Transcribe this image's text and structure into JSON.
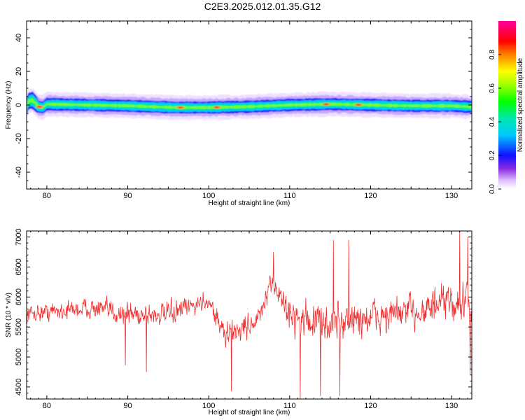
{
  "figure_title": "C2E3.2025.012.01.35.G12",
  "chart_data": [
    {
      "type": "heatmap",
      "xlabel": "Height of straight line (km)",
      "ylabel": "Frequency (Hz)",
      "xlim": [
        77.5,
        132.5
      ],
      "ylim": [
        -50,
        50
      ],
      "xticks": [
        80,
        90,
        100,
        110,
        120,
        130
      ],
      "yticks": [
        -40,
        -20,
        0,
        20,
        40
      ],
      "colorbar": {
        "label": "Normalized spectral amplitude",
        "range": [
          0,
          1
        ],
        "ticks": [
          "0.0",
          "0.2",
          "0.4",
          "0.6",
          "0.8"
        ],
        "colormap": "rainbow (white-violet-blue-cyan-green-yellow-orange-red-magenta)"
      },
      "center_frequency": [
        [
          77.6,
          2
        ],
        [
          78.2,
          3
        ],
        [
          79.0,
          -1
        ],
        [
          79.5,
          -1.5
        ],
        [
          80.0,
          0.5
        ],
        [
          85,
          0
        ],
        [
          90,
          -0.5
        ],
        [
          96,
          -1.5
        ],
        [
          100,
          -1.5
        ],
        [
          105,
          -1
        ],
        [
          110,
          0
        ],
        [
          115,
          0.5
        ],
        [
          120,
          0
        ],
        [
          125,
          -0.5
        ],
        [
          130,
          -0.5
        ],
        [
          132,
          -1
        ]
      ],
      "core_halfwidth_hz": 2,
      "hot_spots_km": [
        79.1,
        96.5,
        101.0,
        114.5,
        118.5
      ]
    },
    {
      "type": "line",
      "xlabel": "Height of straight line (km)",
      "ylabel": "SNR (10 * v/v)",
      "xlim": [
        77.5,
        132.5
      ],
      "ylim": [
        4300,
        7100
      ],
      "xticks": [
        80,
        90,
        100,
        110,
        120,
        130
      ],
      "yticks": [
        4500,
        5000,
        5500,
        6000,
        6500,
        7000
      ],
      "color": "#f03030",
      "envelope": [
        {
          "x": 77.5,
          "mean": 5720,
          "amp": 300
        },
        {
          "x": 85,
          "mean": 5820,
          "amp": 330
        },
        {
          "x": 90,
          "mean": 5720,
          "amp": 420
        },
        {
          "x": 95,
          "mean": 5700,
          "amp": 400
        },
        {
          "x": 100,
          "mean": 5950,
          "amp": 300
        },
        {
          "x": 102,
          "mean": 5350,
          "amp": 480
        },
        {
          "x": 106,
          "mean": 5600,
          "amp": 430
        },
        {
          "x": 108,
          "mean": 6250,
          "amp": 380
        },
        {
          "x": 110,
          "mean": 5700,
          "amp": 560
        },
        {
          "x": 114,
          "mean": 5550,
          "amp": 650
        },
        {
          "x": 120,
          "mean": 5650,
          "amp": 650
        },
        {
          "x": 125,
          "mean": 5750,
          "amp": 600
        },
        {
          "x": 130,
          "mean": 5900,
          "amp": 650
        },
        {
          "x": 132.5,
          "mean": 5850,
          "amp": 750
        }
      ],
      "spikes": [
        {
          "x": 108.0,
          "y": 6750
        },
        {
          "x": 115.4,
          "y": 6950
        },
        {
          "x": 117.3,
          "y": 6950
        },
        {
          "x": 131.0,
          "y": 7100
        },
        {
          "x": 132.0,
          "y": 7000
        },
        {
          "x": 102.8,
          "y": 4430
        },
        {
          "x": 111.3,
          "y": 4300
        },
        {
          "x": 113.8,
          "y": 4350
        },
        {
          "x": 116.2,
          "y": 4350
        },
        {
          "x": 132.3,
          "y": 4700
        },
        {
          "x": 89.7,
          "y": 4860
        },
        {
          "x": 92.3,
          "y": 4750
        }
      ],
      "samples": 1100
    }
  ]
}
